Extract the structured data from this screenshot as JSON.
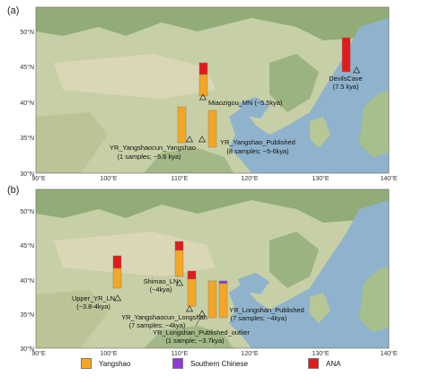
{
  "panel_labels": [
    "(a)",
    "(b)"
  ],
  "axes": {
    "lon_ticks": [
      "90°E",
      "100°E",
      "110°E",
      "120°E",
      "130°E",
      "140°E"
    ],
    "lat_ticks": [
      "30°N",
      "35°N",
      "40°N",
      "45°N",
      "50°N"
    ]
  },
  "colors": {
    "Yangshao": "#f5a623",
    "Southern Chinese": "#8e3ad6",
    "ANA": "#e31a1c",
    "sea": "#8fb3cc",
    "land": "#c6cfa5",
    "forest": "#7fa067",
    "desert": "#ddd8b8"
  },
  "panel_a": {
    "annotations": {
      "miaozigou": "Miaozigou_MN (~5.5kya)",
      "devilscave_1": "DevilsCave",
      "devilscave_2": "(7.5 kya)",
      "yangshaocun_1": "YR_Yangshaocun_Yangshao",
      "yangshaocun_2": "(1 samples; ~5.6 kya)",
      "yangshao_pub_1": "YR_Yangshao_Published",
      "yangshao_pub_2": "(8 samples; ~5-6kya)"
    },
    "sites": [
      {
        "name": "Miaozigou_MN",
        "composition": {
          "Yangshao": 0.65,
          "ANA": 0.35
        }
      },
      {
        "name": "DevilsCave",
        "composition": {
          "ANA": 1.0
        }
      },
      {
        "name": "YR_Yangshaocun_Yangshao",
        "composition": {
          "Yangshao": 1.0
        }
      },
      {
        "name": "YR_Yangshao_Published",
        "composition": {
          "Yangshao": 1.0
        }
      }
    ]
  },
  "panel_b": {
    "annotations": {
      "upper_yr_1": "Upper_YR_LN",
      "upper_yr_2": "(~3.8-4kya)",
      "shimao_1": "Shimao_LN",
      "shimao_2": "(~4kya)",
      "ycl_1": "YR_Yangshaocun_Longshan",
      "ycl_2": "(7 samples; ~4kya)",
      "lpo_1": "YR_Longshan_Published_outlier",
      "lpo_2": "(1 sample; ~3.7kya)",
      "lp_1": "YR_Longshan_Published",
      "lp_2": "(7 samples; ~4kya)"
    },
    "sites": [
      {
        "name": "Upper_YR_LN",
        "composition": {
          "Yangshao": 0.6,
          "ANA": 0.4
        }
      },
      {
        "name": "Shimao_LN",
        "composition": {
          "Yangshao": 0.78,
          "ANA": 0.22
        }
      },
      {
        "name": "YR_Yangshaocun_Longshan",
        "composition": {
          "Yangshao": 0.82,
          "ANA": 0.18
        }
      },
      {
        "name": "YR_Longshan_Published_outlier",
        "composition": {
          "Yangshao": 1.0
        }
      },
      {
        "name": "YR_Longshan_Published",
        "composition": {
          "Yangshao": 0.93,
          "Southern Chinese": 0.07
        }
      }
    ]
  },
  "legend": [
    {
      "label": "Yangshao",
      "color": "#f5a623"
    },
    {
      "label": "Southern Chinese",
      "color": "#8e3ad6"
    },
    {
      "label": "ANA",
      "color": "#e31a1c"
    }
  ]
}
